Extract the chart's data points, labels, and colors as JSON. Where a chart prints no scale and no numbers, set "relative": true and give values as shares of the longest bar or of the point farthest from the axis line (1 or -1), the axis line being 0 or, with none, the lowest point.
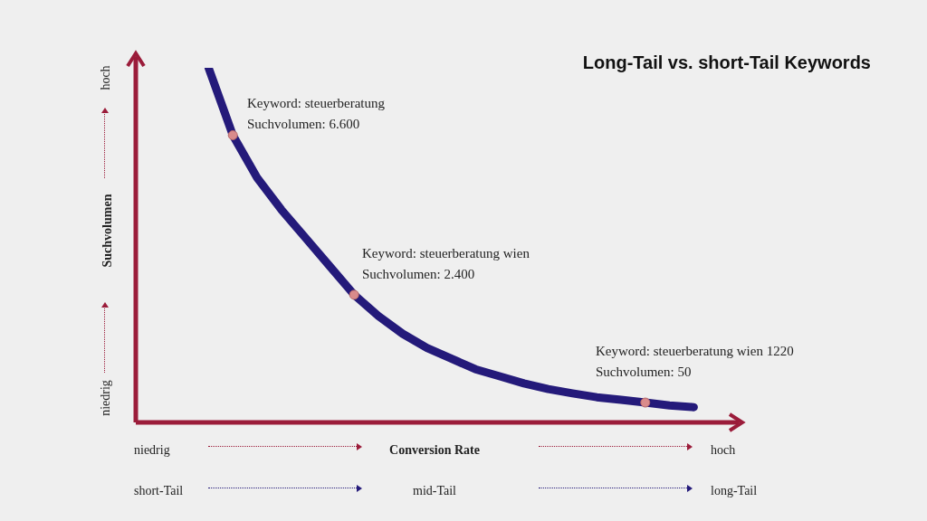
{
  "chart_data": {
    "type": "line",
    "title": "Long-Tail vs. short-Tail Keywords",
    "xlabel": "Conversion Rate",
    "ylabel": "Suchvolumen",
    "relative": true,
    "legend": false,
    "categories": [
      null,
      null,
      null,
      null,
      null,
      null,
      null,
      null,
      null,
      null,
      null,
      null,
      null,
      null,
      null,
      null,
      null,
      null,
      null,
      null,
      null,
      null,
      null,
      null,
      null,
      null
    ],
    "series": [
      {
        "color": "#241a7a",
        "values": [
          null,
          null,
          null,
          1.0,
          0.81,
          0.69,
          0.6,
          0.52,
          0.44,
          0.36,
          0.3,
          0.25,
          0.21,
          0.18,
          0.15,
          0.13,
          0.11,
          0.094,
          0.082,
          0.071,
          0.064,
          0.056,
          0.048,
          0.043,
          null,
          null
        ]
      }
    ],
    "annotations": [
      "Keyword: steuerberatung\nSuchvolumen: 6.600",
      "Keyword: steuerberatung wien\nSuchvolumen: 2.400",
      "Keyword: steuerberatung wien 1220\nSuchvolumen: 50",
      "niedrig",
      "hoch",
      "short-Tail",
      "mid-Tail",
      "long-Tail",
      "niedrig",
      "hoch"
    ]
  }
}
